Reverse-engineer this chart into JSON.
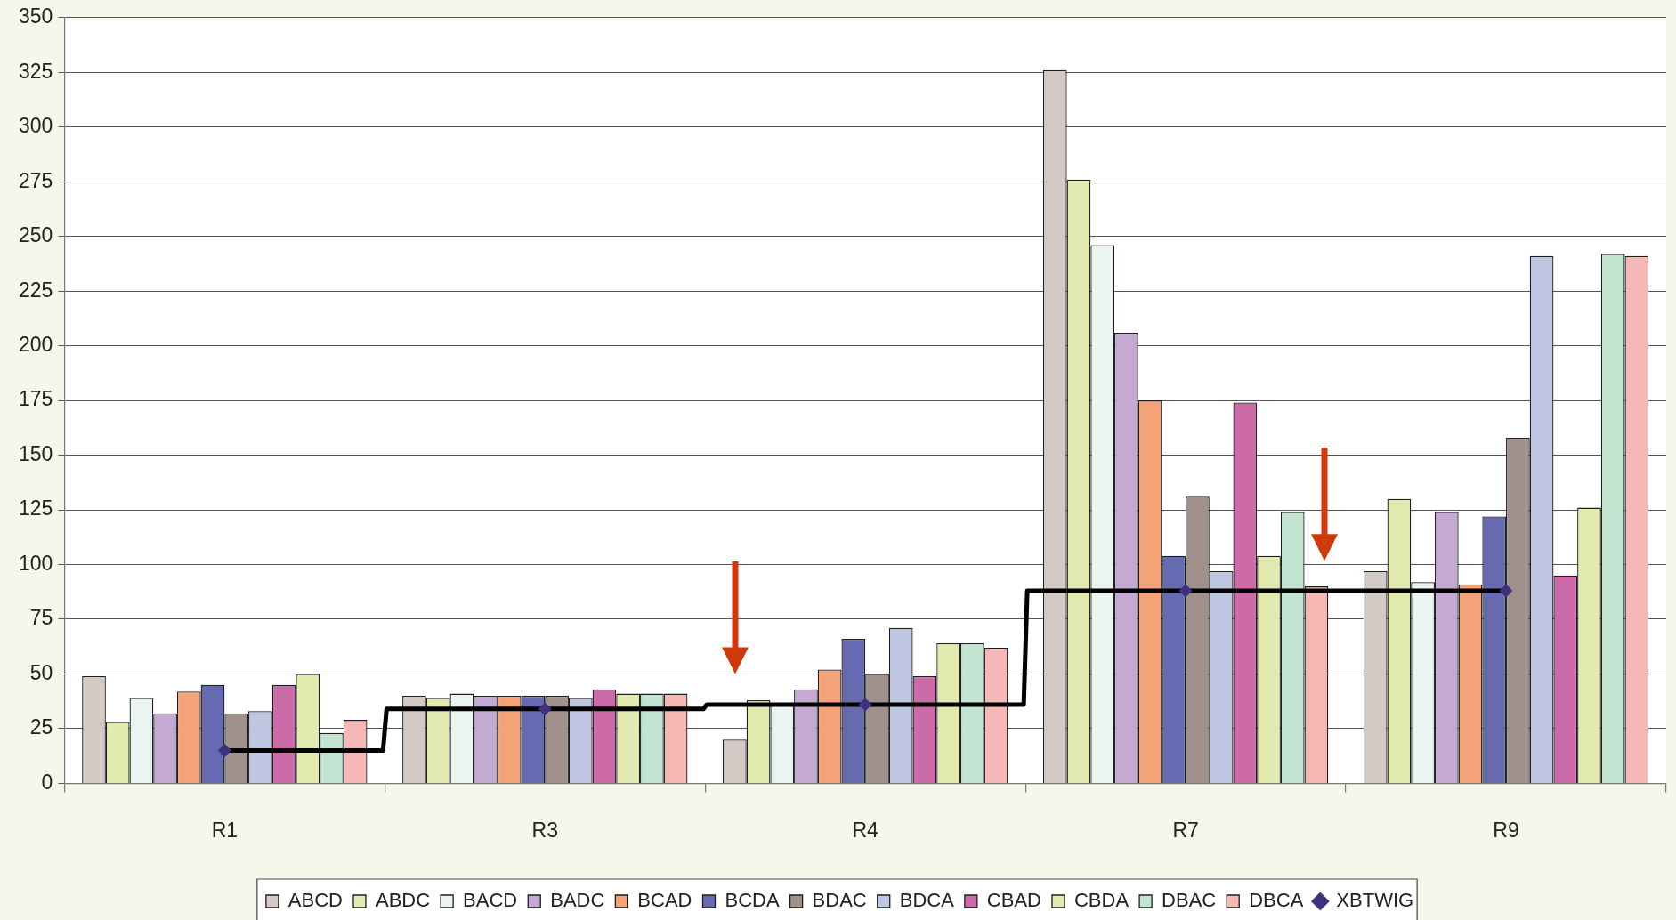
{
  "chart_data": {
    "type": "bar",
    "categories": [
      "R1",
      "R3",
      "R4",
      "R7",
      "R9"
    ],
    "series": [
      {
        "name": "ABCD",
        "color": "#d3cac6",
        "values": [
          49,
          40,
          20,
          326,
          97
        ]
      },
      {
        "name": "ABDC",
        "color": "#e2eab0",
        "values": [
          28,
          39,
          38,
          276,
          130
        ]
      },
      {
        "name": "BACD",
        "color": "#eaf4f0",
        "values": [
          39,
          41,
          36,
          246,
          92
        ]
      },
      {
        "name": "BADC",
        "color": "#c4a9d3",
        "values": [
          32,
          40,
          43,
          206,
          124
        ]
      },
      {
        "name": "BCAD",
        "color": "#f4a378",
        "values": [
          42,
          40,
          52,
          175,
          91
        ]
      },
      {
        "name": "BCDA",
        "color": "#666ab0",
        "values": [
          45,
          40,
          66,
          104,
          122
        ]
      },
      {
        "name": "BDAC",
        "color": "#a0918d",
        "values": [
          32,
          40,
          50,
          131,
          158
        ]
      },
      {
        "name": "BDCA",
        "color": "#bec6e2",
        "values": [
          33,
          39,
          71,
          97,
          241
        ]
      },
      {
        "name": "CBAD",
        "color": "#cd6ba8",
        "values": [
          45,
          43,
          49,
          174,
          95
        ]
      },
      {
        "name": "CBDA",
        "color": "#e2eab0",
        "values": [
          50,
          41,
          64,
          104,
          126
        ]
      },
      {
        "name": "DBAC",
        "color": "#c4e4d2",
        "values": [
          23,
          41,
          64,
          124,
          242
        ]
      },
      {
        "name": "DBCA",
        "color": "#f5b8b5",
        "values": [
          29,
          41,
          62,
          90,
          241
        ]
      },
      {
        "type": "step",
        "color": "#000000",
        "values": [
          15,
          34,
          36,
          88,
          88
        ]
      },
      {
        "name": "XBTWIG",
        "type": "scatter",
        "color": "#3d3180",
        "marker": "diamond",
        "values": [
          15,
          34,
          36,
          88,
          88
        ]
      }
    ],
    "ylim": [
      0,
      350
    ],
    "yticks": [
      0,
      25,
      50,
      75,
      100,
      125,
      150,
      175,
      200,
      225,
      250,
      275,
      300,
      325,
      350
    ],
    "grid": "y",
    "legend": "bottom"
  }
}
